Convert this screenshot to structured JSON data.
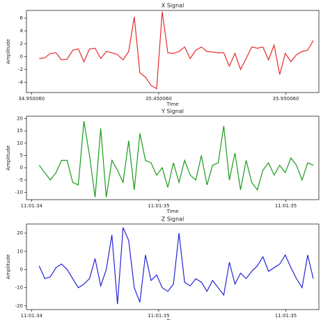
{
  "chart_data": [
    {
      "type": "line",
      "title": "X Signal",
      "x_label": "Time",
      "y_label": "Amplitude",
      "x": [
        34.98,
        35.002,
        35.024,
        35.046,
        35.068,
        35.09,
        35.112,
        35.134,
        35.156,
        35.178,
        35.2,
        35.222,
        35.244,
        35.266,
        35.288,
        35.31,
        35.332,
        35.354,
        35.376,
        35.398,
        35.42,
        35.442,
        35.464,
        35.486,
        35.508,
        35.53,
        35.552,
        35.574,
        35.596,
        35.618,
        35.64,
        35.662,
        35.684,
        35.706,
        35.728,
        35.75,
        35.772,
        35.794,
        35.816,
        35.838,
        35.86,
        35.882,
        35.904,
        35.926,
        35.948,
        35.97,
        35.992,
        36.014,
        36.036,
        36.058
      ],
      "series": [
        {
          "name": "X Signal",
          "color": "#e8292a",
          "values": [
            -0.3,
            -0.2,
            0.5,
            0.6,
            -0.5,
            -0.4,
            1.0,
            1.2,
            -0.8,
            1.2,
            1.3,
            -0.3,
            0.8,
            0.6,
            0.3,
            -0.5,
            0.8,
            6.2,
            -2.5,
            -3.2,
            -4.5,
            -5.0,
            7.0,
            0.6,
            0.5,
            0.8,
            1.5,
            -0.3,
            1.0,
            1.5,
            0.8,
            0.7,
            0.6,
            0.6,
            -1.5,
            0.5,
            -2.0,
            -0.3,
            1.5,
            1.3,
            1.5,
            -0.5,
            1.8,
            -2.8,
            0.5,
            -0.8,
            0.3,
            0.8,
            1.0,
            2.5
          ]
        }
      ],
      "xlim": [
        34.93,
        36.08
      ],
      "xticks": [
        {
          "value": 34.95006,
          "label": "34.950060"
        },
        {
          "value": 35.45006,
          "label": "35.450060"
        },
        {
          "value": 35.95006,
          "label": "35.950060"
        }
      ],
      "ylim": [
        -5.6,
        7.2
      ],
      "yticks": [
        -4,
        -2,
        0,
        2,
        4,
        6
      ]
    },
    {
      "type": "line",
      "title": "Y Signal",
      "x_label": "Time",
      "y_label": "Amplitude",
      "x": [
        34.98,
        35.002,
        35.024,
        35.046,
        35.068,
        35.09,
        35.112,
        35.134,
        35.156,
        35.178,
        35.2,
        35.222,
        35.244,
        35.266,
        35.288,
        35.31,
        35.332,
        35.354,
        35.376,
        35.398,
        35.42,
        35.442,
        35.464,
        35.486,
        35.508,
        35.53,
        35.552,
        35.574,
        35.596,
        35.618,
        35.64,
        35.662,
        35.684,
        35.706,
        35.728,
        35.75,
        35.772,
        35.794,
        35.816,
        35.838,
        35.86,
        35.882,
        35.904,
        35.926,
        35.948,
        35.97,
        35.992,
        36.014,
        36.036,
        36.058
      ],
      "series": [
        {
          "name": "Y Signal",
          "color": "#1a9a1a",
          "values": [
            1,
            -2,
            -5,
            -2,
            3,
            3,
            -6,
            -7,
            19,
            5,
            -12,
            16,
            -12,
            3,
            -1,
            -6,
            11,
            -9,
            14,
            3,
            2,
            -3,
            0,
            -8,
            2,
            -6,
            3,
            -3,
            -5,
            5,
            -7,
            1,
            2,
            17,
            -5,
            6,
            -9,
            3,
            -6,
            -9,
            -1,
            2,
            -3,
            1,
            -2,
            4,
            1,
            -5,
            2,
            1
          ]
        }
      ],
      "xlim": [
        34.93,
        36.08
      ],
      "xticks": [
        {
          "value": 34.95006,
          "label": "11:01:34"
        },
        {
          "value": 35.45006,
          "label": "11:01:35"
        },
        {
          "value": 35.95006,
          "label": "11:01:35"
        }
      ],
      "ylim": [
        -13,
        21
      ],
      "yticks": [
        -10,
        -5,
        0,
        5,
        10,
        15,
        20
      ]
    },
    {
      "type": "line",
      "title": "Z Signal",
      "x_label": "Time",
      "y_label": "Amplitude",
      "x": [
        34.98,
        35.002,
        35.024,
        35.046,
        35.068,
        35.09,
        35.112,
        35.134,
        35.156,
        35.178,
        35.2,
        35.222,
        35.244,
        35.266,
        35.288,
        35.31,
        35.332,
        35.354,
        35.376,
        35.398,
        35.42,
        35.442,
        35.464,
        35.486,
        35.508,
        35.53,
        35.552,
        35.574,
        35.596,
        35.618,
        35.64,
        35.662,
        35.684,
        35.706,
        35.728,
        35.75,
        35.772,
        35.794,
        35.816,
        35.838,
        35.86,
        35.882,
        35.904,
        35.926,
        35.948,
        35.97,
        35.992,
        36.014,
        36.036,
        36.058
      ],
      "series": [
        {
          "name": "Z Signal",
          "color": "#2323d8",
          "values": [
            2,
            -5,
            -4,
            1,
            3,
            0,
            -5,
            -10,
            -8,
            -5,
            6,
            -9,
            0,
            19,
            -19,
            23,
            16,
            -10,
            -18,
            8,
            -6,
            -3,
            -10,
            -12,
            -8,
            20,
            -7,
            -9,
            -5,
            -7,
            -12,
            -6,
            -10,
            -14,
            4,
            -8,
            -2,
            -5,
            -1,
            2,
            7,
            -1,
            1,
            3,
            8,
            1,
            -5,
            -10,
            8,
            -5
          ]
        }
      ],
      "xlim": [
        34.93,
        36.08
      ],
      "xticks": [
        {
          "value": 34.95006,
          "label": "11:01:34"
        },
        {
          "value": 35.45006,
          "label": "11:01:35"
        },
        {
          "value": 35.95006,
          "label": "11:01:35"
        }
      ],
      "ylim": [
        -22,
        25
      ],
      "yticks": [
        -20,
        -10,
        0,
        10,
        20
      ]
    }
  ]
}
